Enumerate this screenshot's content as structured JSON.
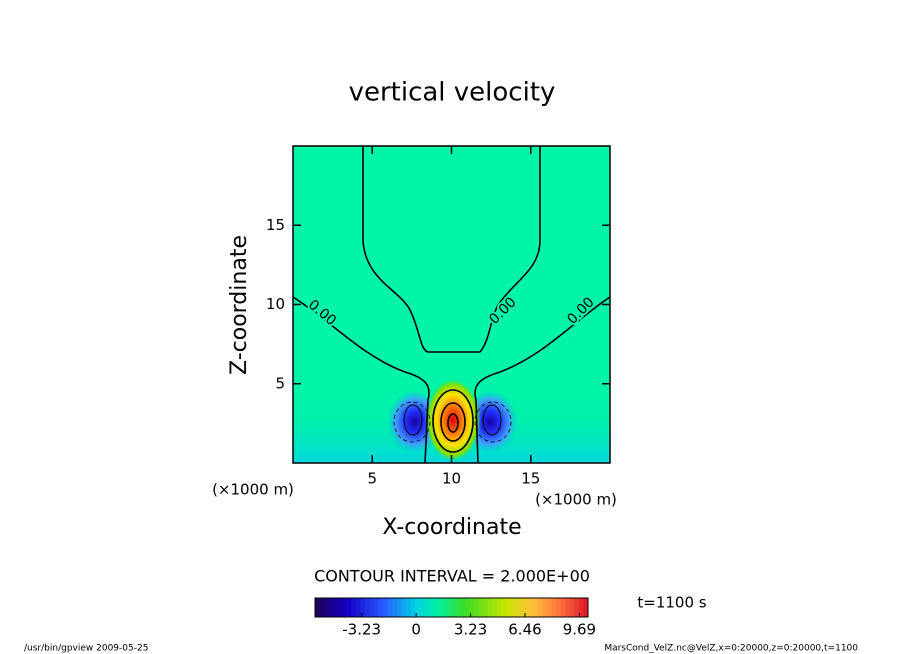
{
  "chart_data": {
    "type": "contour",
    "title": "vertical velocity",
    "xlabel": "X-coordinate",
    "ylabel": "Z-coordinate",
    "xunit": "(×1000 m)",
    "yunit": "(×1000 m)",
    "xlim": [
      0,
      20
    ],
    "ylim": [
      0,
      20
    ],
    "xticks": [
      5,
      10,
      15
    ],
    "yticks": [
      5,
      10,
      15
    ],
    "contour_labels": {
      "values": [
        0,
        0,
        0
      ],
      "value_labels": [
        "0.00",
        "0.00",
        "0.00"
      ]
    },
    "contour_interval": "CONTOUR INTERVAL = 2.000E+00",
    "colorbar": {
      "lim": [
        -6,
        10.2
      ],
      "ticks": [
        -3.23,
        0,
        3.23,
        6.46,
        9.69
      ]
    },
    "time_label": "t=1100 s",
    "footer_left": "/usr/bin/gpview  2009-05-25",
    "footer_right": "MarsCond_VelZ.nc@VelZ,x=0:20000,z=0:20000,t=1100"
  }
}
